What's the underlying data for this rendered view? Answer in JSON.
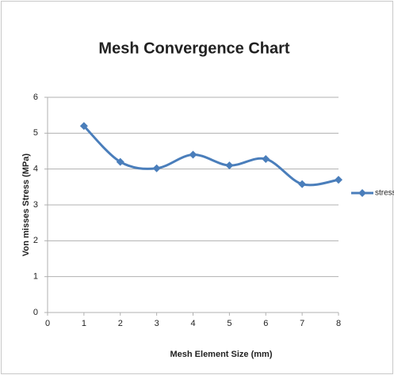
{
  "chart_data": {
    "type": "line",
    "title": "Mesh Convergence Chart",
    "x_label": "Mesh Element Size (mm)",
    "y_label": "Von misses Stress (MPa)",
    "x": [
      1,
      2,
      3,
      4,
      5,
      6,
      7,
      8
    ],
    "series": [
      {
        "name": "stress",
        "color": "#4a7ebb",
        "values": [
          5.2,
          4.2,
          4.02,
          4.4,
          4.1,
          4.28,
          3.58,
          3.7
        ]
      }
    ],
    "xlim": [
      0,
      8
    ],
    "xticks": [
      0,
      1,
      2,
      3,
      4,
      5,
      6,
      7,
      8
    ],
    "ylim": [
      0,
      6
    ],
    "yticks": [
      0,
      1,
      2,
      3,
      4,
      5,
      6
    ],
    "grid": true,
    "smooth": true,
    "legend": "right"
  }
}
